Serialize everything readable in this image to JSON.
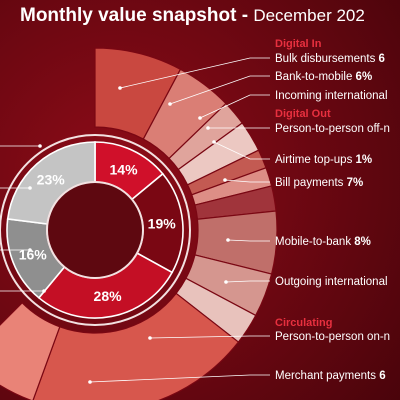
{
  "header": {
    "title": "Monthly value snapshot -",
    "subtitle": "December 202"
  },
  "chart_data": {
    "type": "donut",
    "inner": [
      {
        "label": "14%",
        "value": 14,
        "color": "#d0102a"
      },
      {
        "label": "19%",
        "value": 19,
        "color": "#7a0713"
      },
      {
        "label": "28%",
        "value": 28,
        "color": "#c40f25"
      },
      {
        "label": "16%",
        "value": 16,
        "color": "#8f8f8f"
      },
      {
        "label": "23%",
        "value": 23,
        "color": "#c4c4c4"
      }
    ],
    "outer": [
      {
        "color": "#c94840"
      },
      {
        "color": "#da7e75"
      },
      {
        "color": "#e0a49c"
      },
      {
        "color": "#ecc8c2"
      },
      {
        "color": "#c35a52"
      },
      {
        "color": "#dd8e86"
      },
      {
        "color": "#a0343b"
      },
      {
        "color": "#c06f6a"
      },
      {
        "color": "#d5968f"
      },
      {
        "color": "#e8c2bc"
      },
      {
        "color": "#d7574d"
      },
      {
        "color": "#e98377"
      }
    ],
    "groups": [
      {
        "name": "Digital In",
        "color": "#e8303f"
      },
      {
        "name": "Digital Out",
        "color": "#e8303f"
      },
      {
        "name": "Circulating",
        "color": "#e8303f"
      }
    ],
    "labels": [
      {
        "name": "Bulk disbursements",
        "value": "6"
      },
      {
        "name": "Bank-to-mobile",
        "value": "6%"
      },
      {
        "name": "Incoming international",
        "value": ""
      },
      {
        "name": "Person-to-person off-n",
        "value": ""
      },
      {
        "name": "Airtime top-ups",
        "value": "1%"
      },
      {
        "name": "Bill payments",
        "value": "7%"
      },
      {
        "name": "Mobile-to-bank",
        "value": "8%"
      },
      {
        "name": "Outgoing international",
        "value": ""
      },
      {
        "name": "Person-to-person on-n",
        "value": ""
      },
      {
        "name": "Merchant payments",
        "value": "6"
      }
    ]
  }
}
